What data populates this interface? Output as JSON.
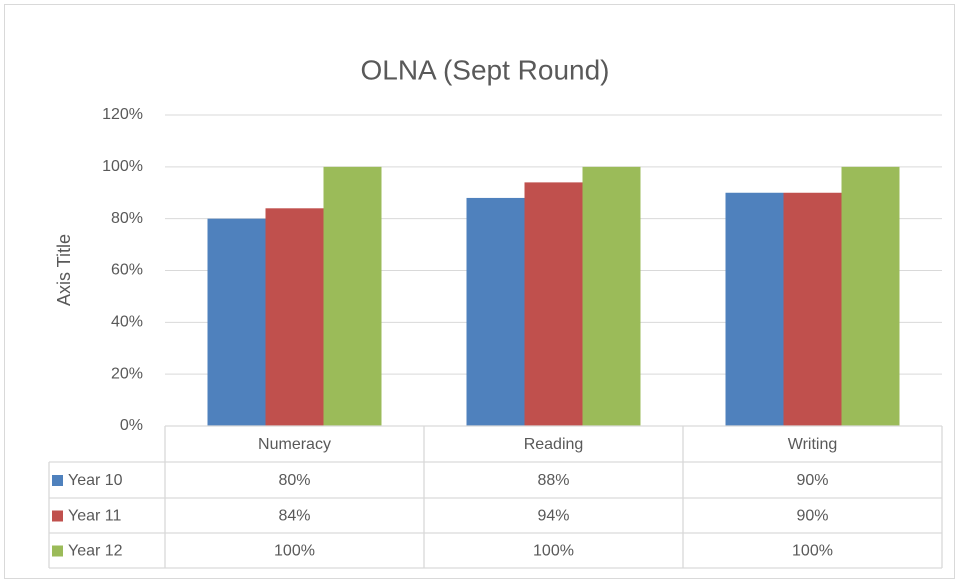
{
  "chart_data": {
    "type": "bar",
    "title": "OLNA (Sept Round)",
    "y_axis_label": "Axis Title",
    "categories": [
      "Numeracy",
      "Reading",
      "Writing"
    ],
    "series": [
      {
        "name": "Year 10",
        "color": "#4f81bd",
        "values": [
          80,
          88,
          90
        ],
        "value_labels": [
          "80%",
          "88%",
          "90%"
        ]
      },
      {
        "name": "Year 11",
        "color": "#c0504d",
        "values": [
          84,
          94,
          90
        ],
        "value_labels": [
          "84%",
          "94%",
          "90%"
        ]
      },
      {
        "name": "Year 12",
        "color": "#9bbb59",
        "values": [
          100,
          100,
          100
        ],
        "value_labels": [
          "100%",
          "100%",
          "100%"
        ]
      }
    ],
    "ylim": [
      0,
      120
    ],
    "yticks": [
      {
        "value": 0,
        "label": "0%"
      },
      {
        "value": 20,
        "label": "20%"
      },
      {
        "value": 40,
        "label": "40%"
      },
      {
        "value": 60,
        "label": "60%"
      },
      {
        "value": 80,
        "label": "80%"
      },
      {
        "value": 100,
        "label": "100%"
      },
      {
        "value": 120,
        "label": "120%"
      }
    ],
    "grid": true
  }
}
